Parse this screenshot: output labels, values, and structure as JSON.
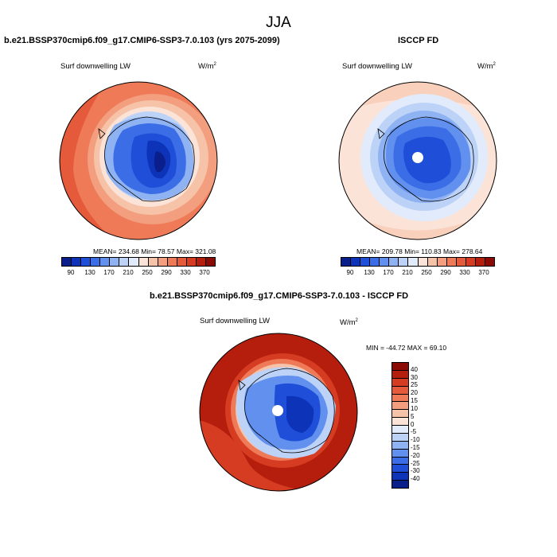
{
  "season": "JJA",
  "panels": {
    "model": {
      "title": "b.e21.BSSP370cmip6.f09_g17.CMIP6-SSP3-7.0.103 (yrs 2075-2099)",
      "variable": "Surf downwelling LW",
      "units_base": "W/m",
      "units_exp": "2",
      "stats": "MEAN= 234.68   Min=  78.57   Max= 321.08"
    },
    "obs": {
      "title": "ISCCP FD",
      "variable": "Surf downwelling LW",
      "units_base": "W/m",
      "units_exp": "2",
      "stats": "MEAN= 209.78   Min= 110.83   Max= 278.64"
    },
    "diff": {
      "title": "b.e21.BSSP370cmip6.f09_g17.CMIP6-SSP3-7.0.103 - ISCCP FD",
      "variable": "Surf downwelling LW",
      "units_base": "W/m",
      "units_exp": "2",
      "stats": "MIN = -44.72 MAX =  69.10"
    }
  },
  "colorbar_abs": {
    "labels": [
      "90",
      "130",
      "170",
      "210",
      "250",
      "290",
      "330",
      "370"
    ],
    "colors": [
      "#0a1f8c",
      "#0c33b8",
      "#1f4fd8",
      "#3b6de6",
      "#6190ee",
      "#8fb2f3",
      "#bcd2f7",
      "#e1ebfb",
      "#fbe3d8",
      "#f7c3a8",
      "#f39e7e",
      "#ee7a58",
      "#e55a3a",
      "#d63c22",
      "#b51d0d",
      "#8c0a04"
    ]
  },
  "colorbar_diff": {
    "labels": [
      "40",
      "30",
      "25",
      "20",
      "15",
      "10",
      "5",
      "0",
      "-5",
      "-10",
      "-15",
      "-20",
      "-25",
      "-30",
      "-40"
    ],
    "colors": [
      "#8c0a04",
      "#b51d0d",
      "#d63c22",
      "#e55a3a",
      "#ee7a58",
      "#f39e7e",
      "#f7c3a8",
      "#fbe3d8",
      "#e1ebfb",
      "#bcd2f7",
      "#8fb2f3",
      "#6190ee",
      "#3b6de6",
      "#1f4fd8",
      "#0c33b8",
      "#0a1f8c"
    ]
  }
}
